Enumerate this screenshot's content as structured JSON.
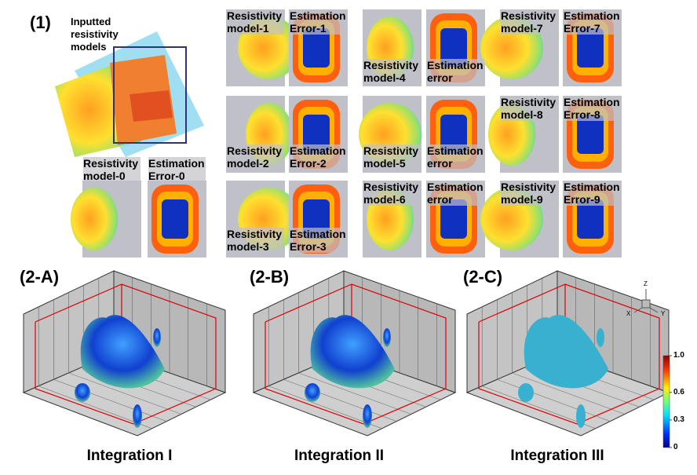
{
  "panel_1": {
    "label": "(1)",
    "inputs_label": "Inputted resistivity models",
    "tiles": [
      "Resistivity model-0",
      "Estimation Error-0",
      "Resistivity model-1",
      "Estimation Error-1",
      "Resistivity model-4",
      "Estimation error",
      "Resistivity model-7",
      "Estimation Error-7",
      "Resistivity model-2",
      "Estimation Error-2",
      "Resistivity model-5",
      "Estimation error",
      "Resistivity model-8",
      "Estimation Error-8",
      "Resistivity model-3",
      "Estimation Error-3",
      "Resistivity model-6",
      "Estimation error",
      "Resistivity model-9",
      "Estimation Error-9"
    ]
  },
  "panel_2": {
    "plots": [
      {
        "label": "(2-A)",
        "caption": "Integration I"
      },
      {
        "label": "(2-B)",
        "caption": "Integration II"
      },
      {
        "label": "(2-C)",
        "caption": "Integration III"
      }
    ],
    "axes": {
      "z": "Z",
      "x": "X",
      "y": "Y"
    },
    "colorbar": {
      "ticks": [
        {
          "value": 1,
          "label": "1.0"
        },
        0.6,
        0.3,
        0
      ],
      "range": [
        0,
        1
      ]
    }
  }
}
